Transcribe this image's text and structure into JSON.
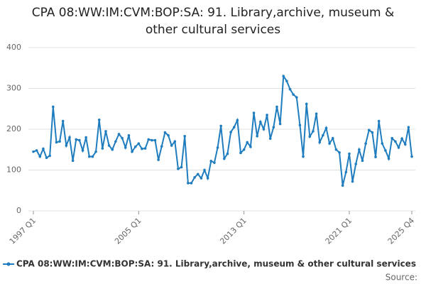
{
  "chart_data": {
    "type": "line",
    "title": "CPA 08:WW:IM:CVM:BOP:SA: 91. Library,archive, museum & other cultural services",
    "categories": [
      "1997 Q1",
      null,
      null,
      null,
      null,
      null,
      null,
      null,
      null,
      null,
      null,
      null,
      null,
      null,
      null,
      null,
      null,
      null,
      null,
      null,
      null,
      null,
      null,
      null,
      null,
      null,
      null,
      null,
      null,
      null,
      null,
      null,
      "2005 Q1",
      null,
      null,
      null,
      null,
      null,
      null,
      null,
      null,
      null,
      null,
      null,
      null,
      null,
      null,
      null,
      null,
      null,
      null,
      null,
      null,
      null,
      null,
      null,
      null,
      null,
      null,
      null,
      null,
      null,
      null,
      null,
      "2013 Q1",
      null,
      null,
      null,
      null,
      null,
      null,
      null,
      null,
      null,
      null,
      null,
      null,
      null,
      null,
      null,
      null,
      null,
      null,
      null,
      null,
      null,
      null,
      null,
      null,
      null,
      null,
      null,
      null,
      null,
      null,
      null,
      "2021 Q1",
      null,
      null,
      null,
      null,
      null,
      null,
      null,
      null,
      null,
      null,
      null,
      null,
      null,
      null,
      null,
      null,
      null,
      null,
      "2025 Q4"
    ],
    "series": [
      {
        "name": "CPA 08:WW:IM:CVM:BOP:SA: 91. Library,archive, museum & other cultural services",
        "color": "#1f7dbf",
        "values": [
          145,
          148,
          133,
          152,
          130,
          135,
          255,
          168,
          170,
          220,
          160,
          180,
          123,
          175,
          173,
          148,
          180,
          133,
          133,
          145,
          223,
          153,
          195,
          160,
          150,
          170,
          188,
          178,
          155,
          185,
          145,
          157,
          165,
          152,
          153,
          175,
          173,
          173,
          125,
          158,
          192,
          185,
          160,
          170,
          103,
          107,
          183,
          68,
          68,
          82,
          90,
          80,
          100,
          80,
          122,
          118,
          155,
          208,
          128,
          140,
          193,
          205,
          222,
          142,
          150,
          168,
          157,
          240,
          183,
          218,
          200,
          235,
          177,
          205,
          255,
          213,
          330,
          318,
          298,
          285,
          278,
          210,
          133,
          262,
          182,
          195,
          238,
          168,
          185,
          203,
          165,
          178,
          150,
          143,
          62,
          95,
          140,
          72,
          115,
          150,
          123,
          165,
          198,
          192,
          132,
          220,
          165,
          148,
          128,
          178,
          170,
          155,
          177,
          163,
          205,
          133
        ]
      }
    ],
    "ylim": [
      0,
      400
    ],
    "yticks": [
      0,
      100,
      200,
      300,
      400
    ],
    "grid": true,
    "source": "Source:"
  }
}
